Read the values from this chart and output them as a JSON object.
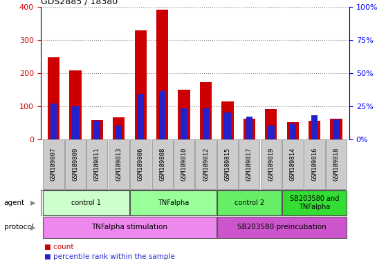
{
  "title": "GDS2885 / 18380",
  "samples": [
    "GSM189807",
    "GSM189809",
    "GSM189811",
    "GSM189813",
    "GSM189806",
    "GSM189808",
    "GSM189810",
    "GSM189812",
    "GSM189815",
    "GSM189817",
    "GSM189819",
    "GSM189814",
    "GSM189816",
    "GSM189818"
  ],
  "count_values": [
    248,
    207,
    57,
    65,
    328,
    390,
    150,
    172,
    113,
    62,
    90,
    52,
    55,
    62
  ],
  "percentile_values": [
    27,
    25,
    14,
    10,
    34,
    36,
    23,
    23,
    20,
    17,
    10,
    12,
    18,
    15
  ],
  "ylim_left": [
    0,
    400
  ],
  "ylim_right": [
    0,
    100
  ],
  "yticks_left": [
    0,
    100,
    200,
    300,
    400
  ],
  "yticks_right": [
    0,
    25,
    50,
    75,
    100
  ],
  "bar_color_count": "#cc0000",
  "bar_color_pct": "#2222cc",
  "bar_width": 0.55,
  "pct_bar_width": 0.3,
  "agent_groups": [
    {
      "label": "control 1",
      "start": 0,
      "end": 3,
      "color": "#ccffcc"
    },
    {
      "label": "TNFalpha",
      "start": 4,
      "end": 7,
      "color": "#99ff99"
    },
    {
      "label": "control 2",
      "start": 8,
      "end": 10,
      "color": "#66ee66"
    },
    {
      "label": "SB203580 and\nTNFalpha",
      "start": 11,
      "end": 13,
      "color": "#33dd33"
    }
  ],
  "protocol_groups": [
    {
      "label": "TNFalpha stimulation",
      "start": 0,
      "end": 7,
      "color": "#ee88ee"
    },
    {
      "label": "SB203580 preincubation",
      "start": 8,
      "end": 13,
      "color": "#cc55cc"
    }
  ],
  "tick_label_bg": "#cccccc",
  "grid_color": "#888888",
  "legend_count_color": "#cc0000",
  "legend_pct_color": "#2222cc"
}
